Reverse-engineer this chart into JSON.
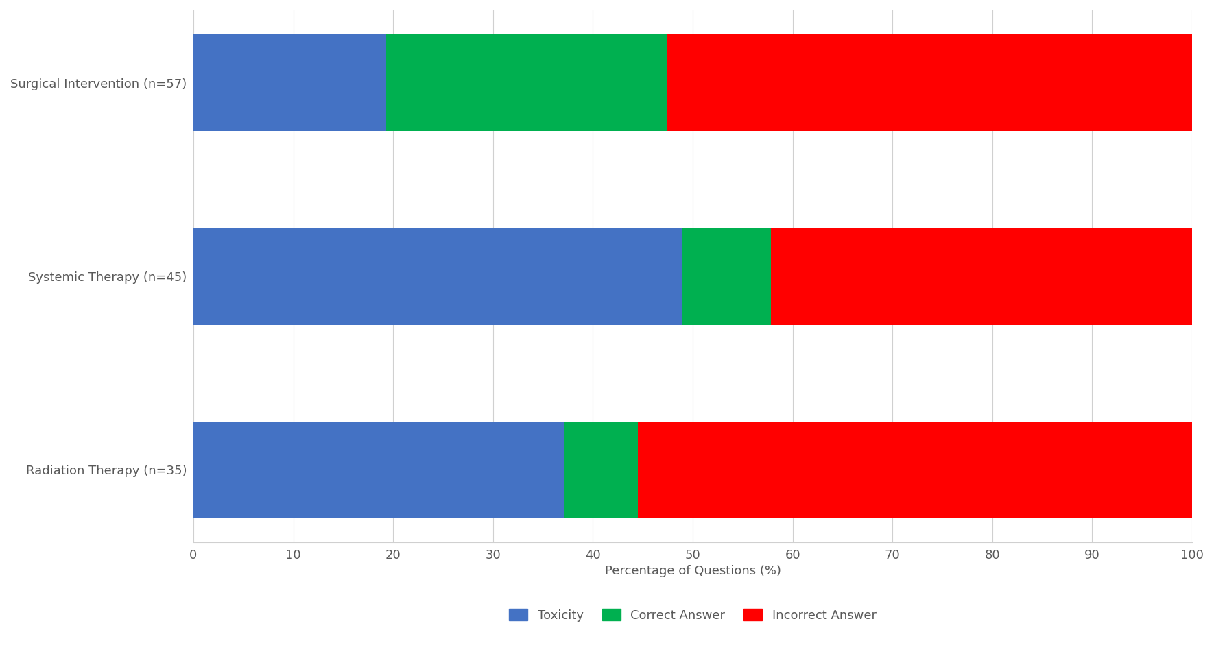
{
  "categories": [
    "Surgical Intervention (n=57)",
    "Systemic Therapy (n=45)",
    "Radiation Therapy (n=35)"
  ],
  "toxicity": [
    19.3,
    48.9,
    37.1
  ],
  "correct_answer": [
    28.1,
    8.9,
    7.4
  ],
  "incorrect_answer": [
    52.6,
    42.2,
    55.5
  ],
  "colors": {
    "toxicity": "#4472C4",
    "correct_answer": "#00B050",
    "incorrect_answer": "#FF0000"
  },
  "xlabel": "Percentage of Questions (%)",
  "xlim": [
    0,
    100
  ],
  "xticks": [
    0,
    10,
    20,
    30,
    40,
    50,
    60,
    70,
    80,
    90,
    100
  ],
  "legend_labels": [
    "Toxicity",
    "Correct Answer",
    "Incorrect Answer"
  ],
  "background_color": "#FFFFFF",
  "grid_color": "#D0D0D0",
  "bar_height": 0.5
}
